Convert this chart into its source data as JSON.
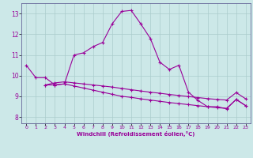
{
  "xlabel": "Windchill (Refroidissement éolien,°C)",
  "background_color": "#cce8e8",
  "grid_color": "#aacccc",
  "line_color": "#990099",
  "spine_color": "#666699",
  "x_ticks": [
    0,
    1,
    2,
    3,
    4,
    5,
    6,
    7,
    8,
    9,
    10,
    11,
    12,
    13,
    14,
    15,
    16,
    17,
    18,
    19,
    20,
    21,
    22,
    23
  ],
  "y_ticks": [
    8,
    9,
    10,
    11,
    12,
    13
  ],
  "ylim": [
    7.7,
    13.5
  ],
  "xlim": [
    -0.5,
    23.5
  ],
  "line1_x": [
    0,
    1,
    2,
    3,
    4,
    5,
    6,
    7,
    8,
    9,
    10,
    11,
    12,
    13,
    14,
    15,
    16,
    17,
    18,
    19,
    20,
    21,
    22,
    23
  ],
  "line1_y": [
    10.5,
    9.9,
    9.9,
    9.55,
    9.6,
    11.0,
    11.1,
    11.4,
    11.6,
    12.5,
    13.1,
    13.15,
    12.5,
    11.8,
    10.65,
    10.3,
    10.5,
    9.2,
    8.8,
    8.5,
    8.5,
    8.4,
    8.85,
    8.55
  ],
  "line2_x": [
    2,
    3,
    4,
    5,
    6,
    7,
    8,
    9,
    10,
    11,
    12,
    13,
    14,
    15,
    16,
    17,
    18,
    19,
    20,
    21,
    22,
    23
  ],
  "line2_y": [
    9.55,
    9.55,
    9.6,
    9.5,
    9.4,
    9.3,
    9.2,
    9.1,
    9.0,
    8.95,
    8.88,
    8.82,
    8.76,
    8.7,
    8.65,
    8.6,
    8.55,
    8.5,
    8.45,
    8.42,
    8.85,
    8.55
  ],
  "line3_x": [
    2,
    3,
    4,
    5,
    6,
    7,
    8,
    9,
    10,
    11,
    12,
    13,
    14,
    15,
    16,
    17,
    18,
    19,
    20,
    21,
    22,
    23
  ],
  "line3_y": [
    9.55,
    9.65,
    9.7,
    9.65,
    9.6,
    9.55,
    9.5,
    9.45,
    9.38,
    9.32,
    9.26,
    9.2,
    9.15,
    9.09,
    9.04,
    8.99,
    8.94,
    8.89,
    8.85,
    8.82,
    9.18,
    8.88
  ]
}
